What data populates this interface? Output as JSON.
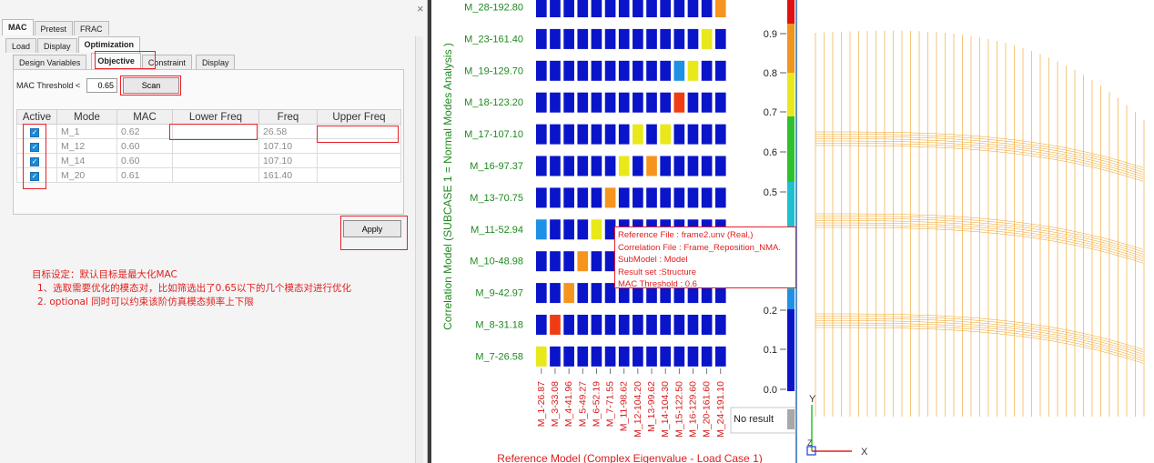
{
  "panel": {
    "close": "×",
    "top_tabs": [
      "MAC",
      "Pretest",
      "FRAC"
    ],
    "sub_tabs": [
      "Load",
      "Display",
      "Optimization"
    ],
    "opt_tabs": [
      "Design Variables",
      "Objective",
      "Constraint",
      "Display"
    ],
    "threshold_label": "MAC Threshold <",
    "threshold_value": "0.65",
    "scan_label": "Scan",
    "apply_label": "Apply",
    "table": {
      "headers": [
        "Active",
        "Mode",
        "MAC",
        "Lower Freq",
        "Freq",
        "Upper Freq"
      ],
      "rows": [
        {
          "mode": "M_1",
          "mac": "0.62",
          "freq": "26.58"
        },
        {
          "mode": "M_12",
          "mac": "0.60",
          "freq": "107.10"
        },
        {
          "mode": "M_14",
          "mac": "0.60",
          "freq": "107.10"
        },
        {
          "mode": "M_20",
          "mac": "0.61",
          "freq": "161.40"
        }
      ]
    },
    "notes": [
      "目标设定：默认目标是最大化MAC",
      "1、选取需要优化的模态对，比如筛选出了0.65以下的几个模态对进行优化",
      "2. optional  同时可以约束该阶仿真模态频率上下限"
    ]
  },
  "tooltip": {
    "lines": [
      "Reference File : frame2.unv (Real,)",
      "Correlation File : Frame_Reposition_NMA.",
      "SubModel : Model",
      "Result set :Structure",
      "MAC Threshold : 0.6"
    ]
  },
  "colors": {
    "accent_red": "#e8202a",
    "cell_blue": "#0a14c8",
    "label_green": "#1e8a1e",
    "label_red": "#d81e1e",
    "mesh_orange": "#f0a01e"
  },
  "chart_data": {
    "type": "heatmap",
    "ylabel": "Correlation Model (SUBCASE 1 = Normal Modes Analysis )",
    "xlabel": "Reference Model (Complex Eigenvalue - Load Case 1)",
    "rows": [
      "M_28-192.80",
      "M_23-161.40",
      "M_19-129.70",
      "M_18-123.20",
      "M_17-107.10",
      "M_16-97.37",
      "M_13-70.75",
      "M_11-52.94",
      "M_10-48.98",
      "M_9-42.97",
      "M_8-31.18",
      "M_7-26.58"
    ],
    "columns": [
      "M_1-26.87",
      "M_3-33.08",
      "M_4-41.96",
      "M_5-49.27",
      "M_6-52.19",
      "M_7-71.55",
      "M_11-98.62",
      "M_12-104.20",
      "M_13-99.62",
      "M_14-104.30",
      "M_15-122.50",
      "M_16-129.60",
      "M_20-161.60",
      "M_24-191.10"
    ],
    "highlights": [
      {
        "row": "M_28-192.80",
        "col": "M_24-191.10",
        "color": "orange"
      },
      {
        "row": "M_23-161.40",
        "col": "M_20-161.60",
        "color": "yellow"
      },
      {
        "row": "M_19-129.70",
        "col": "M_15-122.50",
        "color": "light-blue"
      },
      {
        "row": "M_19-129.70",
        "col": "M_16-129.60",
        "color": "yellow"
      },
      {
        "row": "M_18-123.20",
        "col": "M_15-122.50",
        "color": "red-orange"
      },
      {
        "row": "M_17-107.10",
        "col": "M_12-104.20",
        "color": "yellow"
      },
      {
        "row": "M_17-107.10",
        "col": "M_14-104.30",
        "color": "yellow"
      },
      {
        "row": "M_16-97.37",
        "col": "M_11-98.62",
        "color": "yellow"
      },
      {
        "row": "M_16-97.37",
        "col": "M_13-99.62",
        "color": "orange"
      },
      {
        "row": "M_13-70.75",
        "col": "M_7-71.55",
        "color": "orange"
      },
      {
        "row": "M_11-52.94",
        "col": "M_1-26.87",
        "color": "light-blue"
      },
      {
        "row": "M_11-52.94",
        "col": "M_6-52.19",
        "color": "yellow"
      },
      {
        "row": "M_10-48.98",
        "col": "M_5-49.27",
        "color": "orange"
      },
      {
        "row": "M_9-42.97",
        "col": "M_4-41.96",
        "color": "orange"
      },
      {
        "row": "M_8-31.18",
        "col": "M_3-33.08",
        "color": "red-orange"
      },
      {
        "row": "M_7-26.58",
        "col": "M_1-26.87",
        "color": "yellow"
      }
    ],
    "colorbar": {
      "ticks": [
        "0.9",
        "0.8",
        "0.7",
        "0.6",
        "0.5",
        "0.2",
        "0.1",
        "0.0"
      ],
      "no_result": "No result"
    }
  },
  "model": {
    "axis_x": "X",
    "axis_y": "Y",
    "axis_z": "Z"
  }
}
